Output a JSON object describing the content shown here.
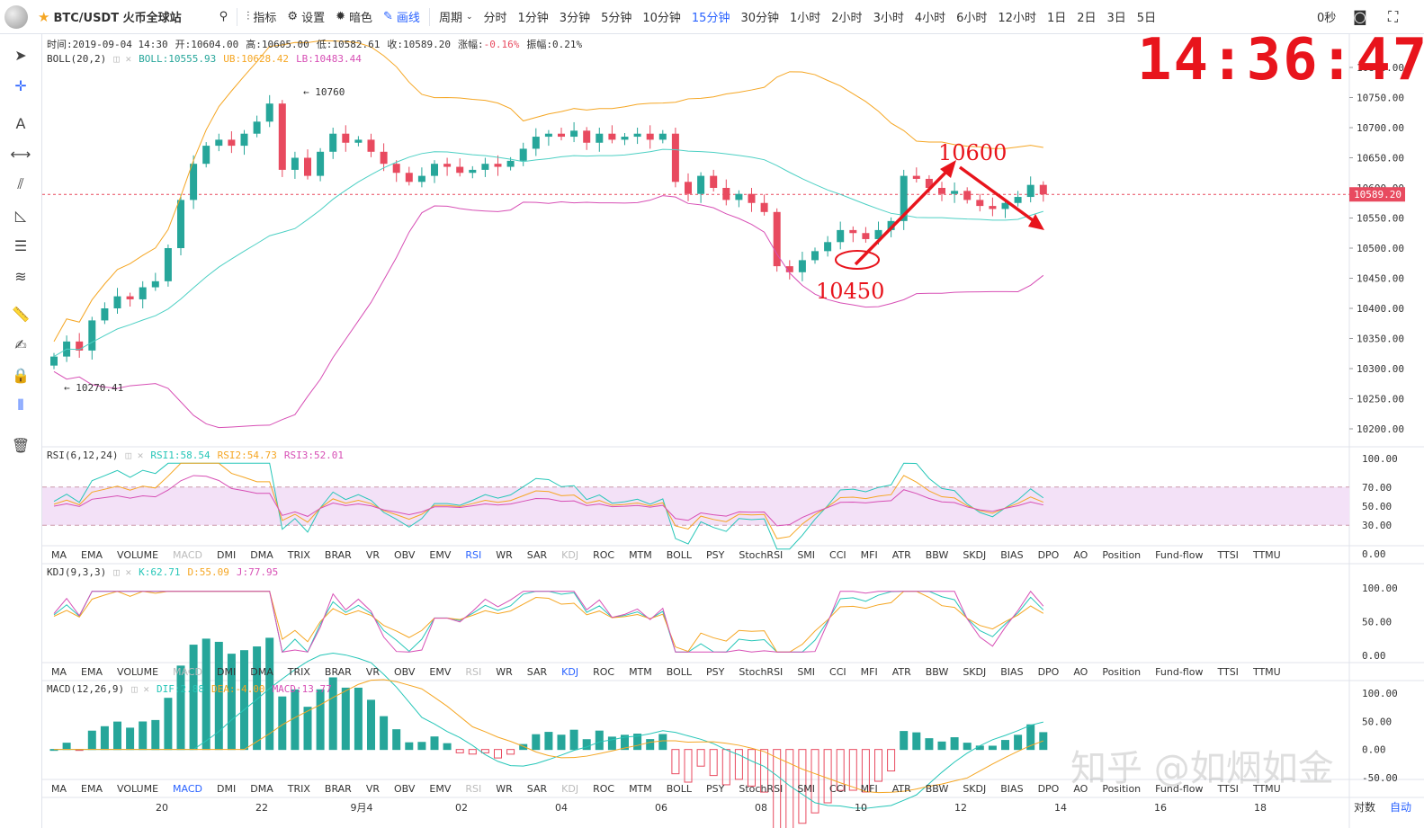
{
  "toolbar": {
    "symbol": "BTC/USDT 火币全球站",
    "items": [
      {
        "id": "indicators",
        "icon": "chart-icon",
        "label": "指标"
      },
      {
        "id": "settings",
        "icon": "gear-icon",
        "label": "设置"
      },
      {
        "id": "dark",
        "icon": "sun-icon",
        "label": "暗色"
      },
      {
        "id": "draw",
        "icon": "pencil-icon",
        "label": "画线"
      }
    ],
    "period_label": "周期",
    "periods": [
      "分时",
      "1分钟",
      "3分钟",
      "5分钟",
      "10分钟",
      "15分钟",
      "30分钟",
      "1小时",
      "2小时",
      "3小时",
      "4小时",
      "6小时",
      "12小时",
      "1日",
      "2日",
      "3日",
      "5日"
    ],
    "active_period": "15分钟",
    "right_label": "0秒",
    "accent": "#2962ff"
  },
  "info": {
    "time": "时间:2019-09-04 14:30",
    "open": "开:10604.00",
    "high": "高:10605.00",
    "low": "低:10582.61",
    "close": "收:10589.20",
    "change_label": "涨幅:",
    "change_value": "-0.16%",
    "amp": "振幅:0.21%"
  },
  "boll": {
    "name": "BOLL(20,2)",
    "mid": "BOLL:10555.93",
    "ub": "UB:10628.42",
    "lb": "LB:10483.44"
  },
  "rsi": {
    "name": "RSI(6,12,24)",
    "r1": "RSI1:58.54",
    "r2": "RSI2:54.73",
    "r3": "RSI3:52.01"
  },
  "kdj": {
    "name": "KDJ(9,3,3)",
    "k": "K:62.71",
    "d": "D:55.09",
    "j": "J:77.95"
  },
  "macd": {
    "name": "MACD(12,26,9)",
    "dif": "DIF:2.88",
    "dea": "DEA:-4.00",
    "macd": "MACD:13.77"
  },
  "indicator_tabs": [
    "MA",
    "EMA",
    "VOLUME",
    "MACD",
    "DMI",
    "DMA",
    "TRIX",
    "BRAR",
    "VR",
    "OBV",
    "EMV",
    "RSI",
    "WR",
    "SAR",
    "KDJ",
    "ROC",
    "MTM",
    "BOLL",
    "PSY",
    "StochRSI",
    "SMI",
    "CCI",
    "MFI",
    "ATR",
    "BBW",
    "SKDJ",
    "BIAS",
    "DPO",
    "AO",
    "Position",
    "Fund-flow",
    "TTSI",
    "TTMU"
  ],
  "clock": "14:36:47",
  "annotations": {
    "high_label": "10600",
    "low_label": "10450",
    "peak_marker": "10760",
    "trough_marker": "10270.41"
  },
  "price_axis": [
    "10800.00",
    "10750.00",
    "10700.00",
    "10650.00",
    "10600.00",
    "10550.00",
    "10500.00",
    "10450.00",
    "10400.00",
    "10350.00",
    "10300.00",
    "10250.00",
    "10200.00"
  ],
  "last_price": "10589.20",
  "rsi_axis": [
    "100.00",
    "70.00",
    "50.00",
    "30.00",
    "0.00"
  ],
  "kdj_axis": [
    "100.00",
    "50.00",
    "0.00"
  ],
  "macd_axis": [
    "100.00",
    "50.00",
    "0.00",
    "-50.00"
  ],
  "time_axis": [
    "20",
    "22",
    "9月4",
    "02",
    "04",
    "06",
    "08",
    "10",
    "12",
    "14",
    "16",
    "18"
  ],
  "bottom_right": [
    "对数",
    "自动"
  ],
  "watermark": "知乎 @如烟如金",
  "colors": {
    "up": "#26a69a",
    "down": "#e84a5f",
    "mid": "#4dd0c4",
    "upper": "#f5a623",
    "lower": "#d74fb5",
    "annot": "#e8141c"
  },
  "chart_data": {
    "type": "candlestick",
    "closes": [
      10320,
      10345,
      10330,
      10380,
      10400,
      10420,
      10415,
      10435,
      10445,
      10500,
      10580,
      10640,
      10670,
      10680,
      10670,
      10690,
      10710,
      10740,
      10630,
      10650,
      10620,
      10660,
      10690,
      10675,
      10680,
      10660,
      10640,
      10625,
      10610,
      10620,
      10640,
      10635,
      10625,
      10630,
      10640,
      10635,
      10645,
      10665,
      10685,
      10690,
      10685,
      10695,
      10675,
      10690,
      10680,
      10685,
      10690,
      10680,
      10690,
      10610,
      10590,
      10620,
      10600,
      10580,
      10590,
      10575,
      10560,
      10470,
      10460,
      10480,
      10495,
      10510,
      10530,
      10525,
      10515,
      10530,
      10545,
      10620,
      10615,
      10600,
      10590,
      10595,
      10580,
      10570,
      10565,
      10575,
      10585,
      10605,
      10589.2
    ]
  }
}
